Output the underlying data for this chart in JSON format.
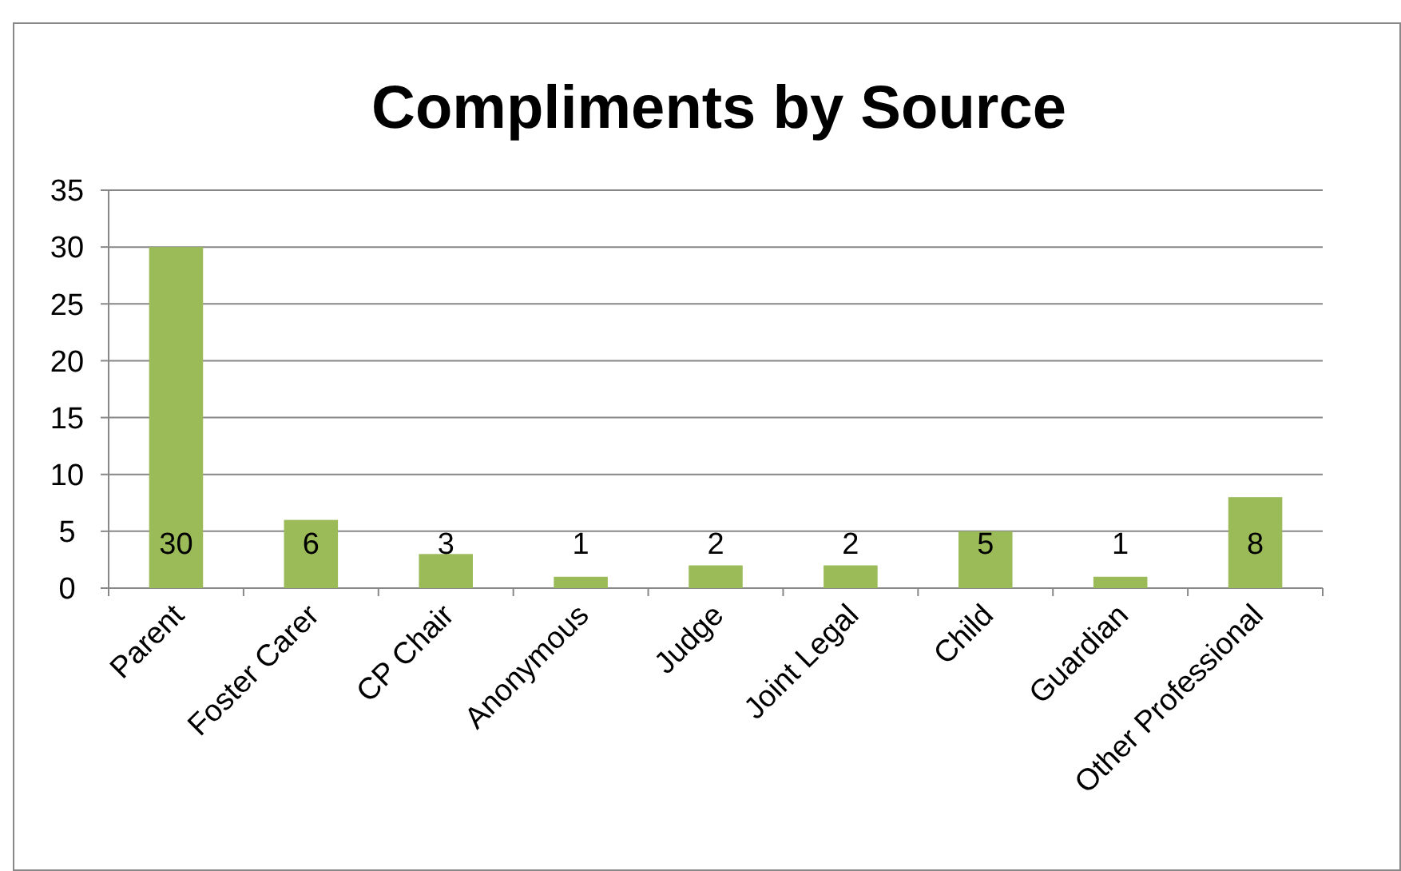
{
  "chart_data": {
    "type": "bar",
    "title": "Compliments by Source",
    "categories": [
      "Parent",
      "Foster Carer",
      "CP Chair",
      "Anonymous",
      "Judge",
      "Joint Legal",
      "Child",
      "Guardian",
      "Other Professional"
    ],
    "values": [
      30,
      6,
      3,
      1,
      2,
      2,
      5,
      1,
      8
    ],
    "color": "#9bbb59",
    "ylim": [
      0,
      35
    ],
    "yticks": [
      0,
      5,
      10,
      15,
      20,
      25,
      30,
      35
    ],
    "grid": "y",
    "data_labels": true
  }
}
